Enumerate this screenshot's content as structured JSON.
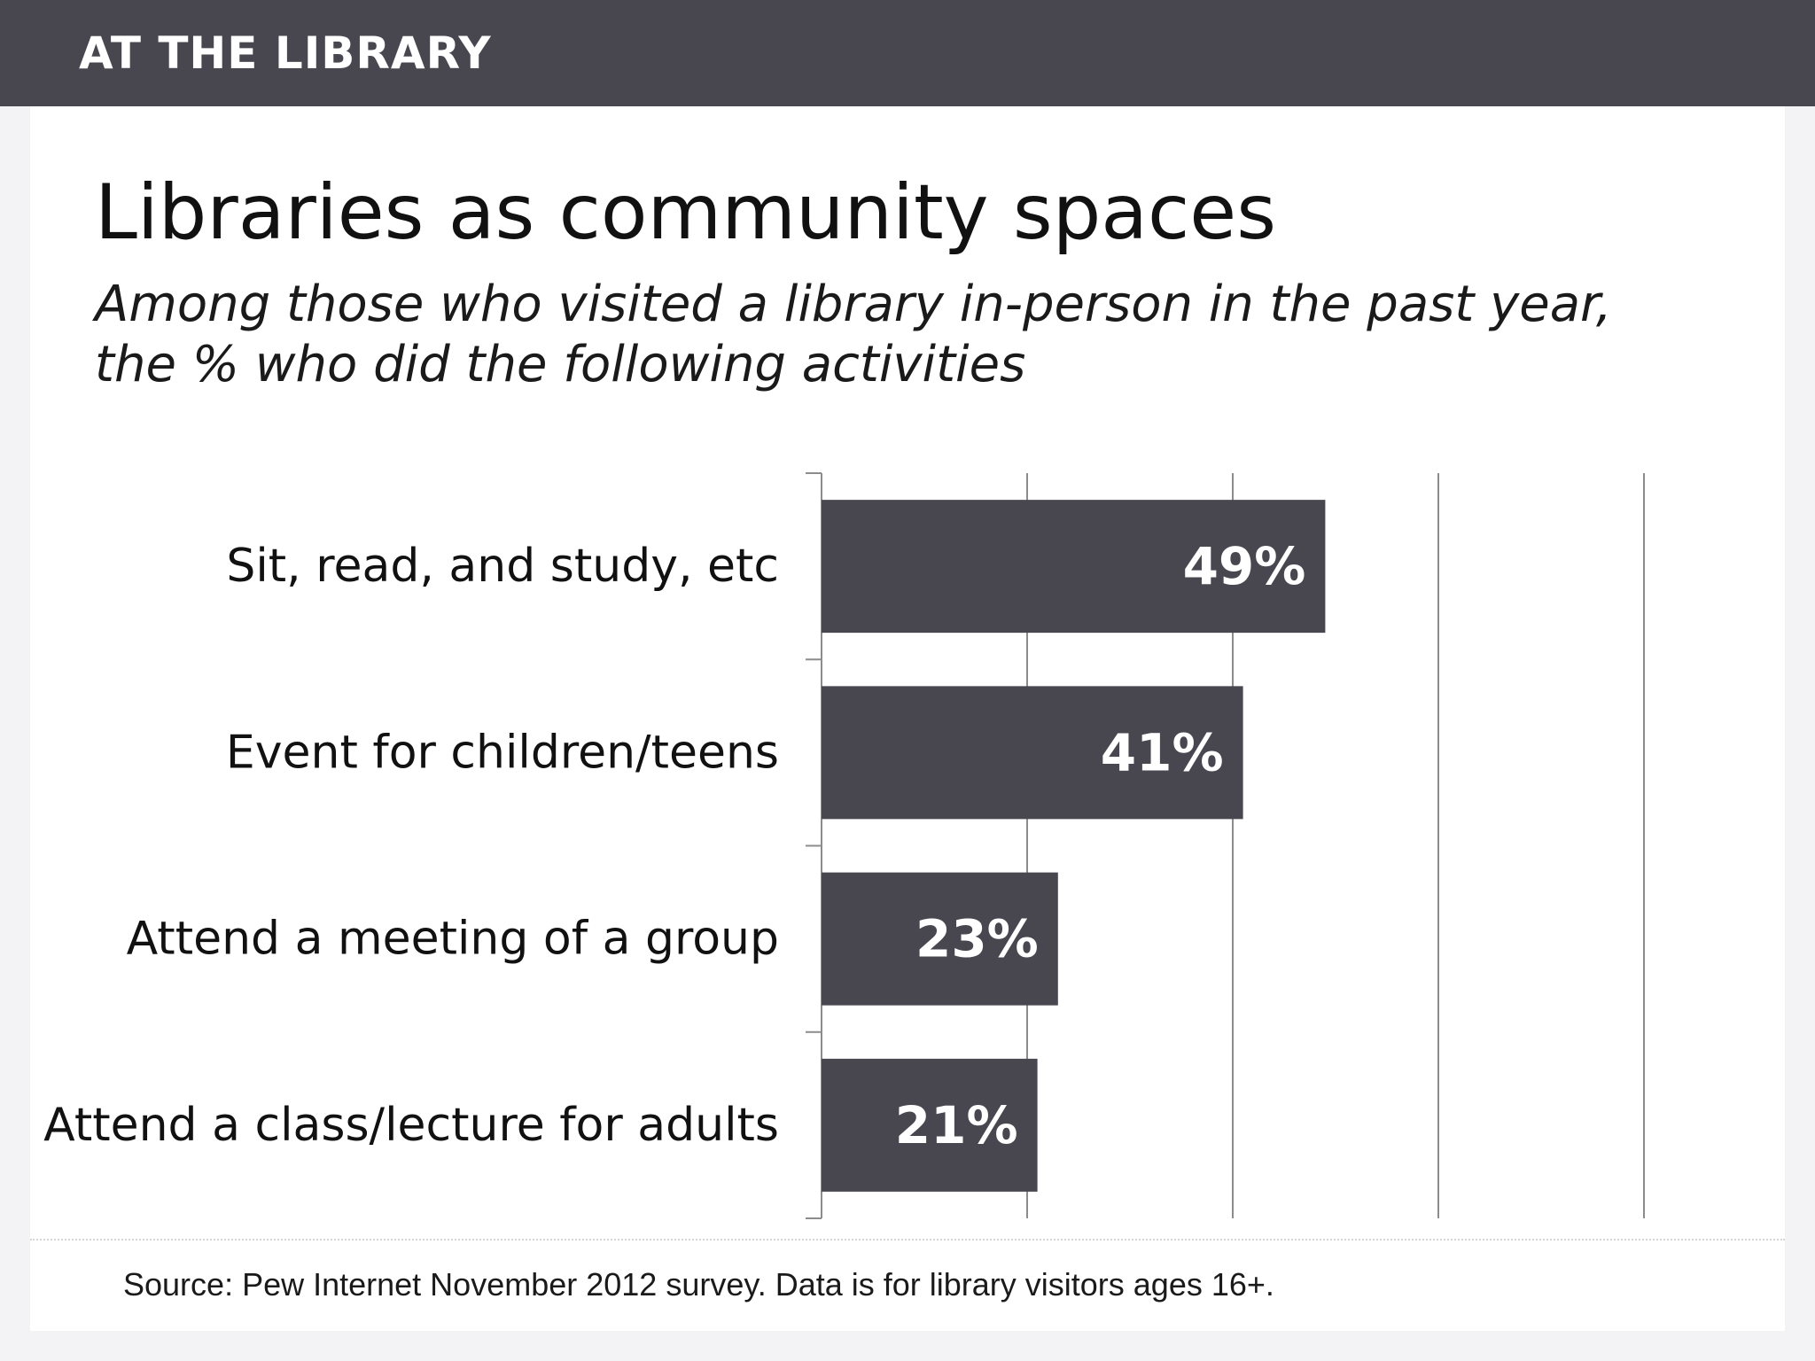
{
  "header": {
    "section_label": "AT THE LIBRARY"
  },
  "chart_data": {
    "type": "bar",
    "orientation": "horizontal",
    "title": "Libraries as community spaces",
    "subtitle": "Among those who visited a library in-person in the past year, the % who did the following activities",
    "categories": [
      "Sit, read, and study, etc",
      "Event for children/teens",
      "Attend a meeting of a group",
      "Attend a class/lecture for adults"
    ],
    "values": [
      49,
      41,
      23,
      21
    ],
    "value_labels": [
      "49%",
      "41%",
      "23%",
      "21%"
    ],
    "xlim": [
      0,
      80
    ],
    "grid": true,
    "xlabel": "",
    "ylabel": "",
    "colors": {
      "bar": "#48464f",
      "value_label": "#ffffff",
      "gridline": "#8c8c8c"
    }
  },
  "footer": {
    "source": "Source: Pew Internet November 2012 survey. Data is for library visitors ages 16+."
  }
}
